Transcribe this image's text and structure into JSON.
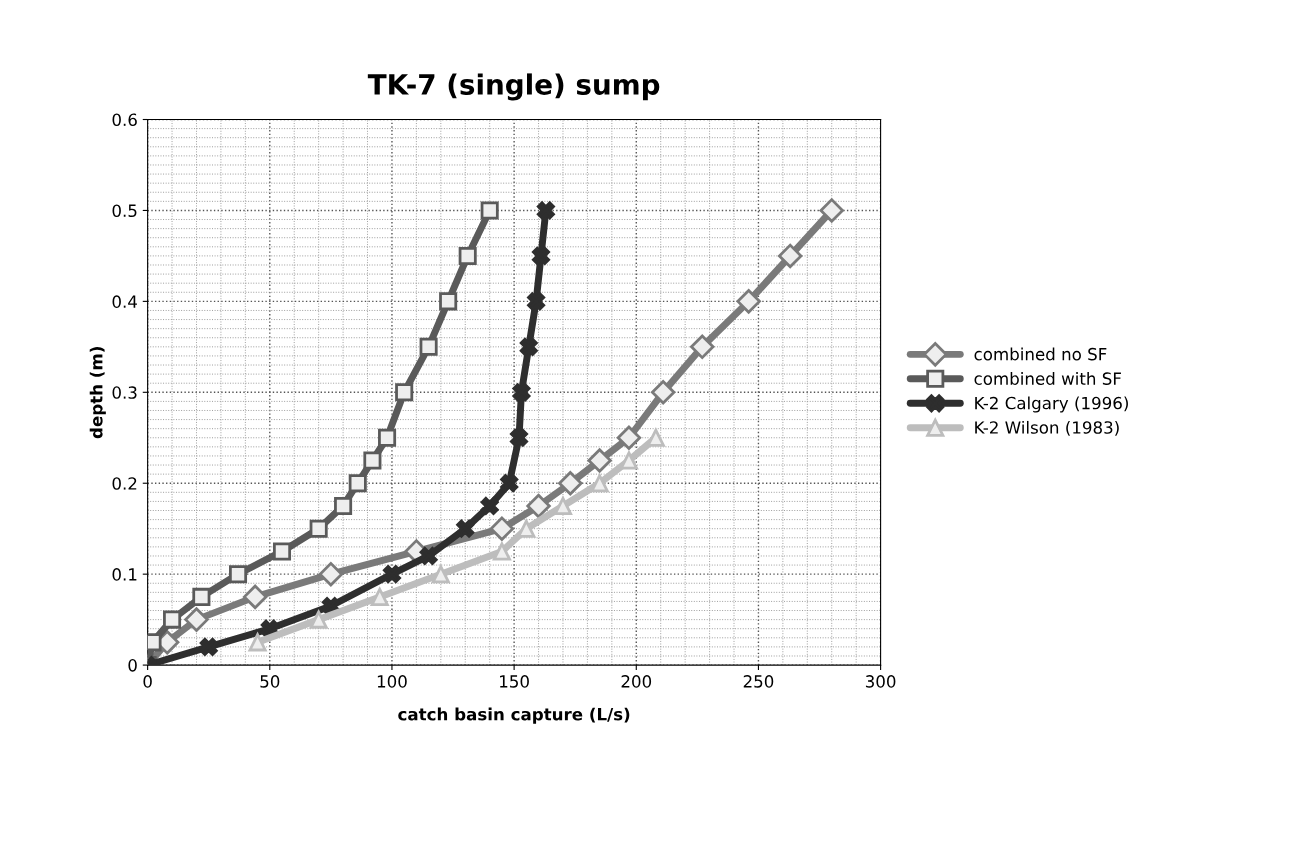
{
  "chart_data": {
    "type": "line",
    "title": "TK-7 (single) sump",
    "xlabel": "catch basin capture (L/s)",
    "ylabel": "depth (m)",
    "xlim": [
      0,
      300
    ],
    "xticks": [
      0,
      50,
      100,
      150,
      200,
      250,
      300
    ],
    "ylim": [
      0,
      0.6
    ],
    "yticks": [
      {
        "value": 0,
        "label": "0"
      },
      0.1,
      0.2,
      0.3,
      0.4,
      0.5,
      0.6
    ],
    "grid": true,
    "legend": "right",
    "line_style": "solid",
    "series": [
      {
        "name": "combined no SF",
        "color": "#7a7a7a",
        "marker": "diamond",
        "x": [
          0,
          8,
          20,
          44,
          75,
          110,
          145,
          160,
          173,
          185,
          197,
          211,
          227,
          246,
          263,
          280
        ],
        "values": [
          0,
          0.025,
          0.05,
          0.075,
          0.1,
          0.125,
          0.15,
          0.175,
          0.2,
          0.225,
          0.25,
          0.3,
          0.35,
          0.4,
          0.45,
          0.5
        ]
      },
      {
        "name": "combined with SF",
        "color": "#5a5a5a",
        "marker": "square",
        "x": [
          0,
          2,
          10,
          22,
          37,
          55,
          70,
          80,
          86,
          92,
          98,
          105,
          115,
          123,
          131,
          140
        ],
        "values": [
          0,
          0.025,
          0.05,
          0.075,
          0.1,
          0.125,
          0.15,
          0.175,
          0.2,
          0.225,
          0.25,
          0.3,
          0.35,
          0.4,
          0.45,
          0.5
        ]
      },
      {
        "name": "K-2 Calgary (1996)",
        "color": "#2e2e2e",
        "marker": "cross",
        "x": [
          0,
          25,
          50,
          75,
          100,
          115,
          130,
          140,
          148,
          152,
          153,
          156,
          159,
          161,
          163
        ],
        "values": [
          0,
          0.02,
          0.04,
          0.065,
          0.1,
          0.12,
          0.15,
          0.175,
          0.2,
          0.25,
          0.3,
          0.35,
          0.4,
          0.45,
          0.5
        ]
      },
      {
        "name": "K-2 Wilson (1983)",
        "color": "#bdbdbd",
        "marker": "triangle",
        "x": [
          45,
          70,
          95,
          120,
          145,
          155,
          170,
          185,
          197,
          208
        ],
        "values": [
          0.025,
          0.05,
          0.075,
          0.1,
          0.125,
          0.15,
          0.175,
          0.2,
          0.225,
          0.25
        ]
      }
    ]
  }
}
